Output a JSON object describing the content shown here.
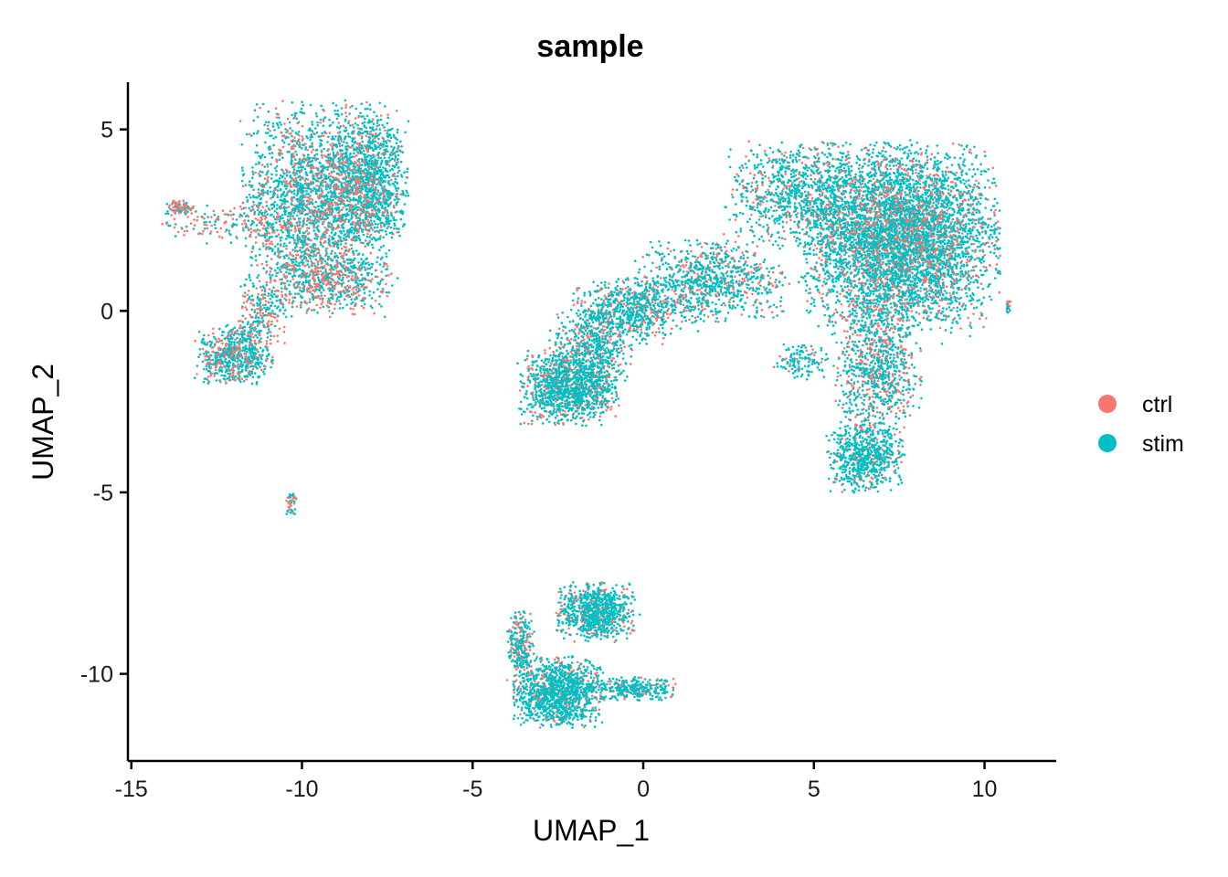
{
  "chart_data": {
    "type": "scatter",
    "title": "sample",
    "xlabel": "UMAP_1",
    "ylabel": "UMAP_2",
    "xlim": [
      -15.1,
      12.1
    ],
    "ylim": [
      -12.4,
      6.3
    ],
    "xticks": [
      -15,
      -10,
      -5,
      0,
      5,
      10
    ],
    "xtick_labels": [
      "-15",
      "-10",
      "-5",
      "0",
      "5",
      "10"
    ],
    "yticks": [
      5,
      0,
      -5,
      -10
    ],
    "ytick_labels": [
      "5",
      "0",
      "-5",
      "-10"
    ],
    "grid": false,
    "legend_position": "right",
    "series": [
      {
        "name": "ctrl",
        "color": "#F8766D"
      },
      {
        "name": "stim",
        "color": "#00BFC4"
      }
    ],
    "clusters": [
      {
        "cx": -9.5,
        "cy": 3.0,
        "sx": 1.4,
        "sy": 1.7,
        "n": 2400,
        "ctrl": 0.25
      },
      {
        "cx": -8.0,
        "cy": 3.6,
        "sx": 0.7,
        "sy": 1.1,
        "n": 900,
        "ctrl": 0.12
      },
      {
        "cx": -9.3,
        "cy": 0.8,
        "sx": 1.1,
        "sy": 0.6,
        "n": 500,
        "ctrl": 0.45
      },
      {
        "cx": -12.0,
        "cy": 2.4,
        "sx": 1.3,
        "sy": 0.35,
        "n": 160,
        "ctrl": 0.55
      },
      {
        "cx": -13.6,
        "cy": 2.85,
        "sx": 0.3,
        "sy": 0.12,
        "n": 90,
        "ctrl": 0.45
      },
      {
        "cx": -12.0,
        "cy": -1.2,
        "sx": 0.7,
        "sy": 0.5,
        "n": 650,
        "ctrl": 0.22
      },
      {
        "cx": -11.2,
        "cy": 0.0,
        "sx": 0.45,
        "sy": 0.6,
        "n": 200,
        "ctrl": 0.35
      },
      {
        "cx": -10.3,
        "cy": -5.3,
        "sx": 0.1,
        "sy": 0.25,
        "n": 40,
        "ctrl": 0.3
      },
      {
        "cx": 7.5,
        "cy": 2.0,
        "sx": 1.8,
        "sy": 1.6,
        "n": 5200,
        "ctrl": 0.2
      },
      {
        "cx": 4.5,
        "cy": 3.2,
        "sx": 1.3,
        "sy": 0.9,
        "n": 900,
        "ctrl": 0.25
      },
      {
        "cx": 2.0,
        "cy": 0.8,
        "sx": 1.4,
        "sy": 0.7,
        "n": 900,
        "ctrl": 0.3
      },
      {
        "cx": -0.5,
        "cy": 0.0,
        "sx": 1.0,
        "sy": 0.6,
        "n": 700,
        "ctrl": 0.3
      },
      {
        "cx": -2.2,
        "cy": -2.1,
        "sx": 0.9,
        "sy": 0.65,
        "n": 1300,
        "ctrl": 0.32
      },
      {
        "cx": -1.5,
        "cy": -1.0,
        "sx": 0.8,
        "sy": 0.6,
        "n": 400,
        "ctrl": 0.3
      },
      {
        "cx": 6.9,
        "cy": -1.5,
        "sx": 0.8,
        "sy": 1.2,
        "n": 900,
        "ctrl": 0.4
      },
      {
        "cx": 6.5,
        "cy": -4.0,
        "sx": 0.7,
        "sy": 0.6,
        "n": 700,
        "ctrl": 0.2
      },
      {
        "cx": 4.6,
        "cy": -1.4,
        "sx": 0.5,
        "sy": 0.3,
        "n": 120,
        "ctrl": 0.2
      },
      {
        "cx": 10.7,
        "cy": 0.1,
        "sx": 0.06,
        "sy": 0.12,
        "n": 20,
        "ctrl": 0.5
      },
      {
        "cx": -1.4,
        "cy": -8.3,
        "sx": 0.7,
        "sy": 0.5,
        "n": 900,
        "ctrl": 0.28
      },
      {
        "cx": -2.5,
        "cy": -10.5,
        "sx": 0.8,
        "sy": 0.6,
        "n": 1200,
        "ctrl": 0.22
      },
      {
        "cx": -0.3,
        "cy": -10.4,
        "sx": 0.8,
        "sy": 0.2,
        "n": 300,
        "ctrl": 0.2
      },
      {
        "cx": -3.6,
        "cy": -9.2,
        "sx": 0.25,
        "sy": 0.6,
        "n": 250,
        "ctrl": 0.4
      }
    ]
  }
}
